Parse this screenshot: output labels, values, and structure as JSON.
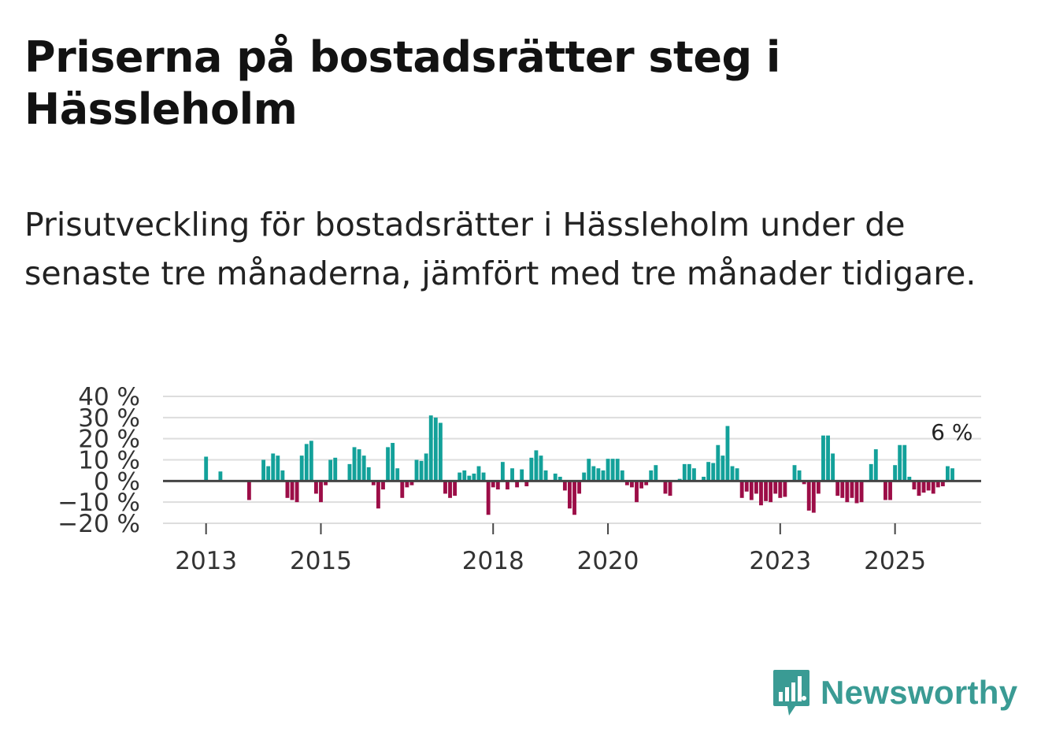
{
  "title": "Priserna på bostadsrätter steg i Hässleholm",
  "subtitle": "Prisutveckling för bostadsrätter i Hässleholm under de senaste tre månaderna, jämfört med tre månader tidigare.",
  "brand": {
    "name": "Newsworthy"
  },
  "colors": {
    "positive": "#13a19a",
    "negative": "#9c0d47",
    "grid": "#dddddd",
    "zero": "#444444"
  },
  "chart_data": {
    "type": "bar",
    "title": "Priserna på bostadsrätter steg i Hässleholm",
    "xlabel": "",
    "ylabel": "",
    "ylim": [
      -20,
      40
    ],
    "y_ticks": [
      40,
      30,
      20,
      10,
      0,
      -10,
      -20
    ],
    "y_tick_labels": [
      "40 %",
      "30 %",
      "20 %",
      "10 %",
      "0 %",
      "−10 %",
      "−20 %"
    ],
    "x_tick_labels": [
      {
        "label": "2013",
        "year": 2013.0
      },
      {
        "label": "2015",
        "year": 2015.0
      },
      {
        "label": "2018",
        "year": 2018.0
      },
      {
        "label": "2020",
        "year": 2020.0
      },
      {
        "label": "2023",
        "year": 2023.0
      },
      {
        "label": "2025",
        "year": 2025.0
      }
    ],
    "start_year": 2012.25,
    "end_year": 2026.5,
    "first_year": 2013.0,
    "bar_step_years": 0.08333,
    "values": [
      11.5,
      0,
      0,
      4.5,
      0,
      0,
      0,
      0,
      0,
      -9,
      0,
      0,
      10,
      7,
      13,
      12,
      5,
      -8,
      -9,
      -10,
      12,
      17.5,
      19,
      -6,
      -10,
      -2,
      10,
      11,
      0,
      0,
      8,
      16,
      15,
      12,
      6.5,
      -2,
      -13,
      -4,
      16,
      18,
      6,
      -8,
      -3,
      -2,
      10,
      9.5,
      13,
      31,
      30,
      27.5,
      -6,
      -8,
      -7,
      4,
      5,
      2.5,
      3.5,
      7,
      4,
      -16,
      -3,
      -4,
      9,
      -4,
      6,
      -3,
      5.5,
      -2.5,
      11,
      14.5,
      12,
      5,
      0,
      3.5,
      2,
      -4.5,
      -13,
      -16,
      -6,
      4,
      10.5,
      7,
      6,
      5,
      10.5,
      10.5,
      10.5,
      5,
      -2,
      -3,
      -10,
      -3.5,
      -2,
      5,
      7.5,
      0,
      -6,
      -7,
      0,
      1,
      8,
      8,
      6,
      0,
      2,
      9,
      8.5,
      17,
      12,
      26,
      7,
      6,
      -8,
      -5,
      -9,
      -6,
      -11.5,
      -9.5,
      -10,
      -6,
      -8,
      -7.5,
      0,
      7.5,
      5,
      -1.5,
      -14,
      -15,
      -6,
      21.5,
      21.5,
      13,
      -7,
      -8,
      -10,
      -8,
      -10.5,
      -10,
      0,
      8,
      15,
      0,
      -9,
      -9,
      7.5,
      17,
      17,
      2,
      -4,
      -7,
      -5.5,
      -4.5,
      -6,
      -3,
      -2.5,
      7,
      6
    ],
    "annotation": {
      "label": "6 %",
      "value": 6
    }
  }
}
